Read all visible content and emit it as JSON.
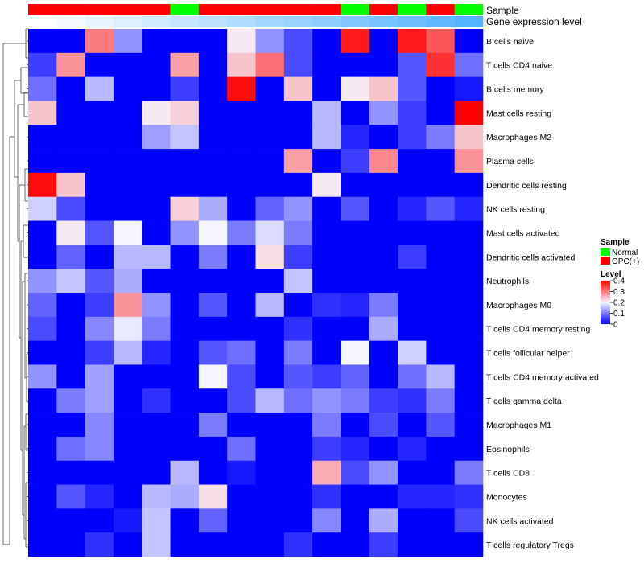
{
  "chart_data": {
    "type": "heatmap",
    "annotation_tracks": [
      {
        "name": "Sample",
        "values": [
          "OPC(+)",
          "OPC(+)",
          "OPC(+)",
          "OPC(+)",
          "OPC(+)",
          "Normal",
          "OPC(+)",
          "OPC(+)",
          "OPC(+)",
          "OPC(+)",
          "OPC(+)",
          "Normal",
          "OPC(+)",
          "Normal",
          "OPC(+)",
          "Normal"
        ]
      },
      {
        "name": "Gene expression level",
        "values": [
          0.0,
          0.01,
          0.02,
          0.03,
          0.04,
          0.05,
          0.06,
          0.07,
          0.08,
          0.09,
          0.1,
          0.11,
          0.12,
          0.13,
          0.14,
          0.15
        ]
      }
    ],
    "rows": [
      "B cells naive",
      "T cells CD4 naive",
      "B cells memory",
      "Mast cells resting",
      "Macrophages M2",
      "Plasma cells",
      "Dendritic cells resting",
      "NK cells resting",
      "Mast cells activated",
      "Dendritic cells activated",
      "Neutrophils",
      "Macrophages M0",
      "T cells CD4 memory resting",
      "T cells follicular helper",
      "T cells CD4 memory activated",
      "T cells gamma delta",
      "Macrophages M1",
      "Eosinophils",
      "T cells CD8",
      "Monocytes",
      "NK cells activated",
      "T cells regulatory  Tregs"
    ],
    "values": [
      [
        0,
        0,
        0.3,
        0.12,
        0,
        0,
        0,
        0.21,
        0.12,
        0.06,
        0,
        0.38,
        0,
        0.38,
        0.33,
        0
      ],
      [
        0.05,
        0.28,
        0,
        0,
        0,
        0.27,
        0,
        0.24,
        0.31,
        0.06,
        0,
        0,
        0,
        0.07,
        0.36,
        0.09
      ],
      [
        0.09,
        0,
        0.15,
        0,
        0,
        0.05,
        0,
        0.39,
        0,
        0.24,
        0,
        0.21,
        0.24,
        0.07,
        0,
        0.02
      ],
      [
        0.24,
        0,
        0,
        0,
        0.21,
        0.23,
        0,
        0,
        0,
        0,
        0.15,
        0,
        0.12,
        0.05,
        0,
        0.4
      ],
      [
        0,
        0,
        0,
        0,
        0.13,
        0.16,
        0,
        0,
        0,
        0,
        0.15,
        0.03,
        0,
        0.05,
        0.1,
        0.24
      ],
      [
        0,
        0,
        0,
        0,
        0,
        0,
        0,
        0,
        0,
        0.27,
        0,
        0.05,
        0.29,
        0,
        0,
        0.28
      ],
      [
        0.39,
        0.24,
        0,
        0,
        0,
        0,
        0,
        0,
        0,
        0,
        0.21,
        0,
        0,
        0,
        0,
        0
      ],
      [
        0.17,
        0.06,
        0,
        0,
        0,
        0.23,
        0.14,
        0,
        0.08,
        0.12,
        0,
        0.07,
        0,
        0.03,
        0.07,
        0.03
      ],
      [
        0,
        0.21,
        0.07,
        0.2,
        0,
        0.12,
        0.2,
        0.1,
        0.18,
        0.1,
        0,
        0,
        0,
        0,
        0,
        0
      ],
      [
        0,
        0.08,
        0,
        0.15,
        0.15,
        0,
        0.1,
        0,
        0.22,
        0.05,
        0,
        0,
        0,
        0.05,
        0,
        0
      ],
      [
        0.12,
        0.16,
        0.07,
        0.14,
        0,
        0,
        0,
        0,
        0,
        0.16,
        0,
        0,
        0,
        0,
        0,
        0
      ],
      [
        0.08,
        0,
        0.05,
        0.28,
        0.12,
        0,
        0.07,
        0,
        0.15,
        0,
        0.04,
        0.03,
        0.1,
        0,
        0,
        0
      ],
      [
        0.06,
        0,
        0.11,
        0.19,
        0.1,
        0,
        0,
        0,
        0,
        0.04,
        0,
        0,
        0.14,
        0,
        0,
        0
      ],
      [
        0,
        0,
        0.05,
        0.15,
        0.03,
        0,
        0.07,
        0.09,
        0,
        0.1,
        0,
        0.2,
        0,
        0.17,
        0,
        0
      ],
      [
        0.12,
        0,
        0.13,
        0,
        0,
        0,
        0.2,
        0.06,
        0,
        0.07,
        0.05,
        0.08,
        0,
        0.09,
        0.15,
        0
      ],
      [
        0,
        0.1,
        0.13,
        0,
        0.04,
        0,
        0,
        0.06,
        0.15,
        0.09,
        0.12,
        0.1,
        0.05,
        0.04,
        0.1,
        0
      ],
      [
        0,
        0,
        0.11,
        0,
        0,
        0,
        0.1,
        0,
        0,
        0,
        0.1,
        0,
        0.06,
        0,
        0.07,
        0
      ],
      [
        0,
        0.09,
        0.11,
        0,
        0,
        0,
        0,
        0.09,
        0,
        0,
        0.05,
        0.03,
        0,
        0.03,
        0,
        0
      ],
      [
        0,
        0,
        0,
        0,
        0,
        0.15,
        0,
        0.02,
        0,
        0,
        0.26,
        0.06,
        0.12,
        0,
        0,
        0.1
      ],
      [
        0,
        0.07,
        0.03,
        0,
        0.15,
        0.14,
        0.22,
        0,
        0,
        0,
        0.04,
        0,
        0,
        0.03,
        0.03,
        0.04
      ],
      [
        0,
        0,
        0,
        0.02,
        0.16,
        0,
        0.08,
        0,
        0,
        0,
        0.11,
        0,
        0.14,
        0,
        0,
        0.06
      ],
      [
        0,
        0,
        0.04,
        0,
        0.16,
        0,
        0,
        0,
        0,
        0.04,
        0,
        0,
        0.05,
        0,
        0,
        0
      ]
    ],
    "colorscale": {
      "low": "#0000ff",
      "mid": "#f5f5ff",
      "high": "#ff0000",
      "min": 0,
      "max": 0.4
    },
    "legend": {
      "placement": "right",
      "sample_title": "Sample",
      "sample_entries": [
        {
          "label": "Normal",
          "color": "#00ff00"
        },
        {
          "label": "OPC(+)",
          "color": "#ff0000"
        }
      ],
      "level_title": "Level",
      "level_ticks": [
        "0.4",
        "0.3",
        "0.2",
        "0.1",
        "0"
      ],
      "level_tick_values": [
        0.4,
        0.3,
        0.2,
        0.1,
        0
      ]
    },
    "colors": {
      "Normal": "#00ff00",
      "OPC(+)": "#ff0000",
      "level_low": "#ffffff",
      "level_high": "#55b4ff"
    },
    "row_dendrogram": true
  }
}
